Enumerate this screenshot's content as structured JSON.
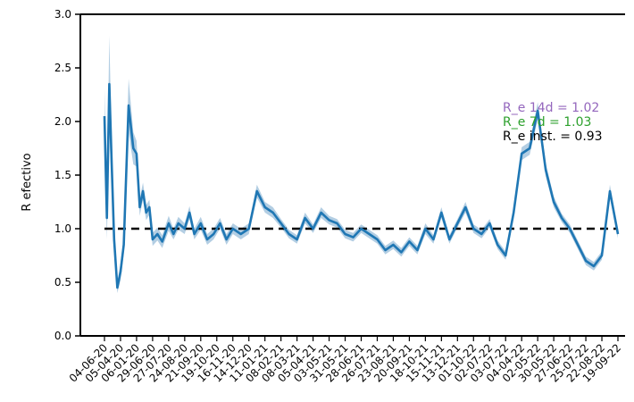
{
  "chart_data": {
    "type": "line",
    "title": "",
    "xlabel": "",
    "ylabel": "R efectivo",
    "ylim": [
      0,
      3.0
    ],
    "yticks": [
      "0.0",
      "0.5",
      "1.0",
      "1.5",
      "2.0",
      "2.5",
      "3.0"
    ],
    "grid": false,
    "x_tick_labels": [
      "04-06-20",
      "05-04-20",
      "06-01-20",
      "29-06-20",
      "27-07-20",
      "24-08-20",
      "21-09-20",
      "19-10-20",
      "16-11-20",
      "14-12-20",
      "11-01-21",
      "08-02-21",
      "08-03-21",
      "05-04-21",
      "03-05-21",
      "31-05-21",
      "28-06-21",
      "26-07-21",
      "23-08-21",
      "20-09-21",
      "18-10-21",
      "15-11-21",
      "13-12-21",
      "01-10-22",
      "02-07-22",
      "03-07-22",
      "04-04-22",
      "02-05-22",
      "30-05-22",
      "27-06-22",
      "25-07-22",
      "22-08-22",
      "19-09-22"
    ],
    "reference_line": {
      "y": 1.0,
      "style": "dashed",
      "color": "#000000"
    },
    "series": [
      {
        "color": "#1f77b4",
        "band_color": "#a6c6de",
        "x": [
          0,
          0.15,
          0.3,
          0.45,
          0.6,
          0.8,
          1.0,
          1.2,
          1.5,
          1.8,
          2.0,
          2.2,
          2.4,
          2.6,
          2.8,
          3.0,
          3.3,
          3.6,
          4.0,
          4.3,
          4.6,
          5.0,
          5.3,
          5.6,
          6.0,
          6.4,
          6.8,
          7.2,
          7.6,
          8.0,
          8.5,
          9.0,
          9.5,
          10.0,
          10.5,
          11.0,
          11.5,
          12.0,
          12.5,
          13.0,
          13.5,
          14.0,
          14.5,
          15.0,
          15.5,
          16.0,
          16.5,
          17.0,
          17.5,
          18.0,
          18.5,
          19.0,
          19.5,
          20.0,
          20.5,
          21.0,
          21.5,
          22.0,
          22.5,
          23.0,
          23.5,
          24.0,
          24.5,
          25.0,
          25.5,
          26.0,
          26.5,
          27.0,
          27.5,
          28.0,
          28.5,
          29.0,
          29.5,
          30.0,
          30.5,
          31.0,
          31.5,
          32.0
        ],
        "values": [
          2.05,
          1.1,
          2.35,
          1.6,
          0.9,
          0.45,
          0.6,
          0.85,
          2.15,
          1.75,
          1.7,
          1.2,
          1.35,
          1.15,
          1.2,
          0.9,
          0.95,
          0.88,
          1.05,
          0.95,
          1.05,
          1.0,
          1.15,
          0.95,
          1.05,
          0.9,
          0.95,
          1.05,
          0.9,
          1.0,
          0.95,
          1.0,
          1.35,
          1.2,
          1.15,
          1.05,
          0.95,
          0.9,
          1.1,
          1.0,
          1.15,
          1.08,
          1.05,
          0.95,
          0.92,
          1.0,
          0.95,
          0.9,
          0.8,
          0.85,
          0.78,
          0.88,
          0.8,
          1.0,
          0.9,
          1.15,
          0.9,
          1.05,
          1.2,
          1.0,
          0.95,
          1.05,
          0.85,
          0.75,
          1.15,
          1.7,
          1.75,
          2.1,
          1.55,
          1.25,
          1.1,
          1.0,
          0.85,
          0.7,
          0.65,
          0.75,
          1.35,
          0.95
        ],
        "band_halfwidth": [
          0.25,
          0.2,
          0.45,
          0.2,
          0.1,
          0.05,
          0.08,
          0.08,
          0.25,
          0.15,
          0.12,
          0.08,
          0.08,
          0.07,
          0.07,
          0.06,
          0.06,
          0.06,
          0.07,
          0.05,
          0.06,
          0.05,
          0.06,
          0.05,
          0.06,
          0.05,
          0.05,
          0.05,
          0.05,
          0.05,
          0.05,
          0.05,
          0.06,
          0.05,
          0.05,
          0.04,
          0.04,
          0.04,
          0.05,
          0.04,
          0.05,
          0.04,
          0.04,
          0.04,
          0.04,
          0.04,
          0.04,
          0.04,
          0.04,
          0.04,
          0.04,
          0.04,
          0.04,
          0.05,
          0.04,
          0.05,
          0.04,
          0.04,
          0.05,
          0.04,
          0.04,
          0.04,
          0.04,
          0.04,
          0.05,
          0.06,
          0.06,
          0.08,
          0.06,
          0.05,
          0.04,
          0.04,
          0.04,
          0.04,
          0.04,
          0.04,
          0.06,
          0.04
        ]
      }
    ],
    "annotations": [
      {
        "text": "R_e 14d = 1.02",
        "color": "#9467bd"
      },
      {
        "text": "R_e 7d = 1.03",
        "color": "#2ca02c"
      },
      {
        "text": "R_e inst. = 0.93",
        "color": "#000000"
      }
    ]
  }
}
